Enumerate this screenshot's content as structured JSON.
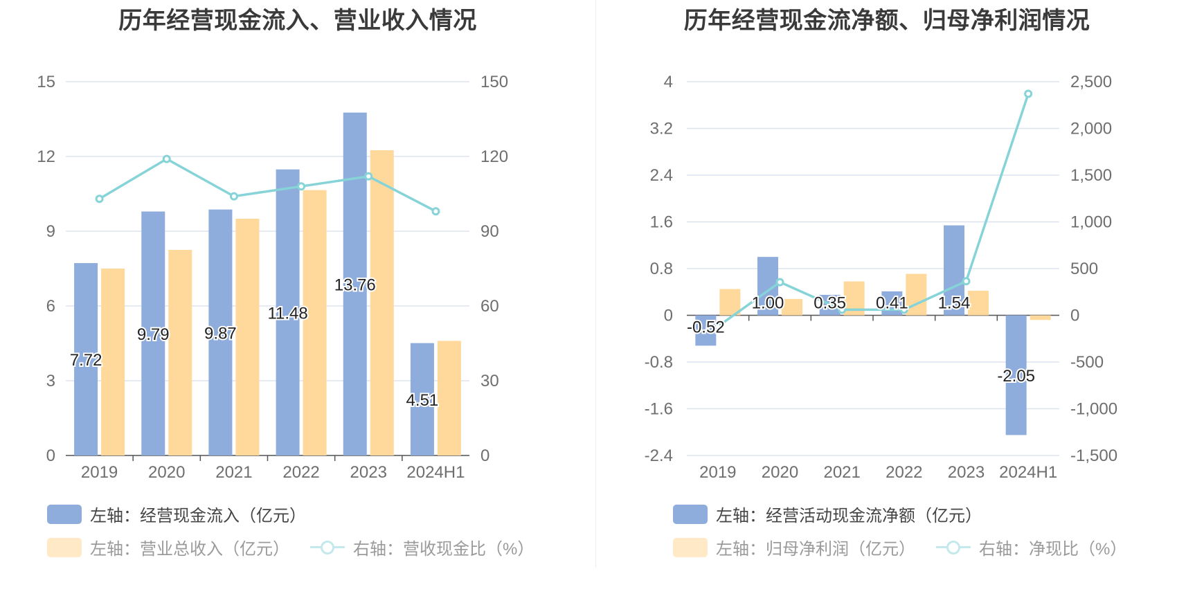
{
  "colors": {
    "bar_blue": "#8eaddc",
    "bar_yellow": "#ffd99b",
    "line_teal": "#86d3d8",
    "grid": "#dde3ee",
    "axis": "#555555"
  },
  "chart_data": [
    {
      "type": "bar",
      "title": "历年经营现金流入、营业收入情况",
      "categories": [
        "2019",
        "2020",
        "2021",
        "2022",
        "2023",
        "2024H1"
      ],
      "y_left": {
        "ylim": [
          0,
          15
        ],
        "ticks": [
          "0",
          "3",
          "6",
          "9",
          "12",
          "15"
        ]
      },
      "y_right": {
        "ylim": [
          0,
          150
        ],
        "ticks": [
          "0",
          "30",
          "60",
          "90",
          "120",
          "150"
        ]
      },
      "grid": true,
      "legend_placement": "bottom",
      "series": [
        {
          "name": "左轴：经营现金流入（亿元）",
          "type": "bar",
          "axis": "left",
          "values": [
            7.72,
            9.79,
            9.87,
            11.48,
            13.76,
            4.51
          ],
          "labels": [
            "7.72",
            "9.79",
            "9.87",
            "11.48",
            "13.76",
            "4.51"
          ]
        },
        {
          "name": "左轴：营业总收入（亿元）",
          "type": "bar",
          "axis": "left",
          "values": [
            7.5,
            8.25,
            9.5,
            10.65,
            12.25,
            4.6
          ]
        },
        {
          "name": "右轴：营收现金比（%）",
          "type": "line",
          "axis": "right",
          "values": [
            103,
            119,
            104,
            108,
            112,
            98
          ]
        }
      ]
    },
    {
      "type": "bar",
      "title": "历年经营现金流净额、归母净利润情况",
      "categories": [
        "2019",
        "2020",
        "2021",
        "2022",
        "2023",
        "2024H1"
      ],
      "y_left": {
        "ylim": [
          -2.4,
          4
        ],
        "ticks": [
          "-2.4",
          "-1.6",
          "-0.8",
          "0",
          "0.8",
          "1.6",
          "2.4",
          "3.2",
          "4"
        ]
      },
      "y_right": {
        "ylim": [
          -1500,
          2500
        ],
        "ticks": [
          "-1,500",
          "-1,000",
          "-500",
          "0",
          "500",
          "1,000",
          "1,500",
          "2,000",
          "2,500"
        ]
      },
      "grid": true,
      "legend_placement": "bottom",
      "series": [
        {
          "name": "左轴：经营活动现金流净额（亿元）",
          "type": "bar",
          "axis": "left",
          "values": [
            -0.52,
            1.0,
            0.35,
            0.41,
            1.54,
            -2.05
          ],
          "labels": [
            "-0.52",
            "1.00",
            "0.35",
            "0.41",
            "1.54",
            "-2.05"
          ]
        },
        {
          "name": "左轴：归母净利润（亿元）",
          "type": "bar",
          "axis": "left",
          "values": [
            0.45,
            0.28,
            0.58,
            0.71,
            0.42,
            -0.08
          ]
        },
        {
          "name": "右轴：净现比（%）",
          "type": "line",
          "axis": "right",
          "values": [
            -120,
            355,
            60,
            60,
            365,
            2370
          ]
        }
      ]
    }
  ]
}
